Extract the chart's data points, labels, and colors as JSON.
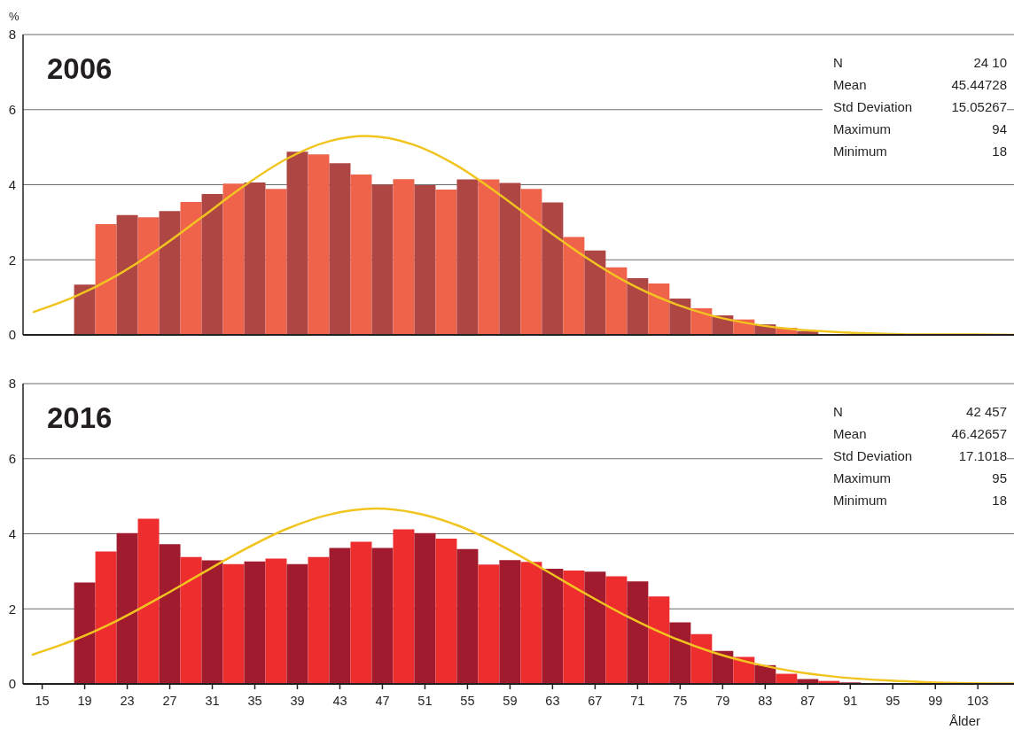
{
  "chart_data": [
    {
      "type": "histogram",
      "title": "2006",
      "ylabel": "%",
      "bins": [
        18,
        20,
        22,
        24,
        26,
        28,
        30,
        32,
        34,
        36,
        38,
        40,
        42,
        44,
        46,
        48,
        50,
        52,
        54,
        56,
        58,
        60,
        62,
        64,
        66,
        68,
        70,
        72,
        74,
        76,
        78,
        80,
        82,
        84,
        86,
        88
      ],
      "series": [
        {
          "values": [
            1.34,
            2.95,
            3.19,
            3.13,
            3.3,
            3.54,
            3.75,
            4.03,
            4.06,
            3.89,
            4.88,
            4.81,
            4.57,
            4.27,
            4.0,
            4.15,
            3.99,
            3.87,
            4.14,
            4.14,
            4.05,
            3.89,
            3.53,
            2.61,
            2.25,
            1.8,
            1.51,
            1.37,
            0.97,
            0.71,
            0.52,
            0.41,
            0.28,
            0.19,
            0.1
          ],
          "colors": [
            "#ae4744",
            "#ef634a",
            "#ae4744",
            "#ef634a",
            "#ae4744",
            "#ef634a",
            "#ae4744",
            "#ef634a",
            "#ae4744",
            "#ef634a",
            "#ae4744",
            "#ef634a",
            "#ae4744",
            "#ef634a",
            "#ae4744",
            "#ef634a",
            "#ae4744",
            "#ef634a",
            "#ae4744",
            "#ef634a",
            "#ae4744",
            "#ef634a",
            "#ae4744",
            "#ef634a",
            "#ae4744",
            "#ef634a",
            "#ae4744",
            "#ef634a",
            "#ae4744",
            "#ef634a",
            "#ae4744",
            "#ef634a",
            "#ae4744",
            "#ef634a",
            "#ae4744"
          ]
        },
        {
          "type": "line",
          "color": "#f2c41f",
          "x": [
            14.2,
            18,
            22,
            26,
            30,
            34,
            38,
            42,
            45.5,
            50,
            54,
            58,
            62,
            66,
            70,
            74,
            78,
            82,
            86,
            90,
            94,
            98,
            102,
            106.4
          ],
          "values": [
            0.61,
            1.01,
            1.58,
            2.3,
            3.13,
            3.97,
            4.69,
            5.16,
            5.3,
            5.06,
            4.51,
            3.74,
            2.89,
            2.09,
            1.4,
            0.88,
            0.51,
            0.28,
            0.14,
            0.07,
            0.03,
            0.01,
            0.01,
            0
          ]
        }
      ],
      "xlim": [
        13.2,
        106.4
      ],
      "xticks": [
        15,
        19,
        23,
        27,
        31,
        35,
        39,
        43,
        47,
        51,
        55,
        59,
        63,
        67,
        71,
        75,
        79,
        83,
        87,
        91,
        95,
        99,
        103
      ],
      "ylim": [
        0,
        8
      ],
      "yticks": [
        0,
        2,
        4,
        6,
        8
      ],
      "grid": "y",
      "tick_labels": "y",
      "annotations": [
        "N",
        "24 10",
        "Mean",
        "45.44728",
        "Std Deviation",
        "15.05267",
        "Maximum",
        "94",
        "Minimum",
        "18"
      ]
    },
    {
      "type": "histogram",
      "title": "2016",
      "xlabel": "Ålder",
      "bins": [
        18,
        20,
        22,
        24,
        26,
        28,
        30,
        32,
        34,
        36,
        38,
        40,
        42,
        44,
        46,
        48,
        50,
        52,
        54,
        56,
        58,
        60,
        62,
        64,
        66,
        68,
        70,
        72,
        74,
        76,
        78,
        80,
        82,
        84,
        86,
        88,
        90,
        92,
        94,
        96
      ],
      "series": [
        {
          "values": [
            2.7,
            3.53,
            4.02,
            4.4,
            3.72,
            3.38,
            3.29,
            3.19,
            3.26,
            3.34,
            3.19,
            3.38,
            3.62,
            3.79,
            3.62,
            4.12,
            4.02,
            3.87,
            3.59,
            3.18,
            3.3,
            3.25,
            3.07,
            3.02,
            2.99,
            2.87,
            2.73,
            2.33,
            1.64,
            1.33,
            0.88,
            0.72,
            0.5,
            0.27,
            0.13,
            0.08,
            0.04,
            0.02,
            0.01
          ],
          "colors": [
            "#a11b2f",
            "#ee2e2e",
            "#a11b2f",
            "#ee2e2e",
            "#a11b2f",
            "#ee2e2e",
            "#a11b2f",
            "#ee2e2e",
            "#a11b2f",
            "#ee2e2e",
            "#a11b2f",
            "#ee2e2e",
            "#a11b2f",
            "#ee2e2e",
            "#a11b2f",
            "#ee2e2e",
            "#a11b2f",
            "#ee2e2e",
            "#a11b2f",
            "#ee2e2e",
            "#a11b2f",
            "#ee2e2e",
            "#a11b2f",
            "#ee2e2e",
            "#a11b2f",
            "#ee2e2e",
            "#a11b2f",
            "#ee2e2e",
            "#a11b2f",
            "#ee2e2e",
            "#a11b2f",
            "#ee2e2e",
            "#a11b2f",
            "#ee2e2e",
            "#a11b2f",
            "#ee2e2e",
            "#a11b2f",
            "#ee2e2e",
            "#a11b2f"
          ]
        },
        {
          "type": "line",
          "color": "#f2c41f",
          "x": [
            14.1,
            18,
            22,
            26,
            30,
            34,
            38,
            42,
            46.4,
            50,
            54,
            58,
            62,
            66,
            70,
            74,
            78,
            82,
            86,
            90,
            94,
            98,
            102,
            106.4
          ],
          "values": [
            0.78,
            1.17,
            1.68,
            2.29,
            2.94,
            3.58,
            4.13,
            4.51,
            4.67,
            4.56,
            4.23,
            3.71,
            3.08,
            2.42,
            1.8,
            1.27,
            0.85,
            0.54,
            0.32,
            0.18,
            0.1,
            0.05,
            0.02,
            0.01
          ]
        }
      ],
      "xlim": [
        13.2,
        106.4
      ],
      "xticks": [
        15,
        19,
        23,
        27,
        31,
        35,
        39,
        43,
        47,
        51,
        55,
        59,
        63,
        67,
        71,
        75,
        79,
        83,
        87,
        91,
        95,
        99,
        103
      ],
      "ylim": [
        0,
        8
      ],
      "yticks": [
        0,
        2,
        4,
        6,
        8
      ],
      "grid": "y",
      "annotations": [
        "N",
        "42 457",
        "Mean",
        "46.42657",
        "Std Deviation",
        "17.1018",
        "Maximum",
        "95",
        "Minimum",
        "18"
      ]
    }
  ]
}
